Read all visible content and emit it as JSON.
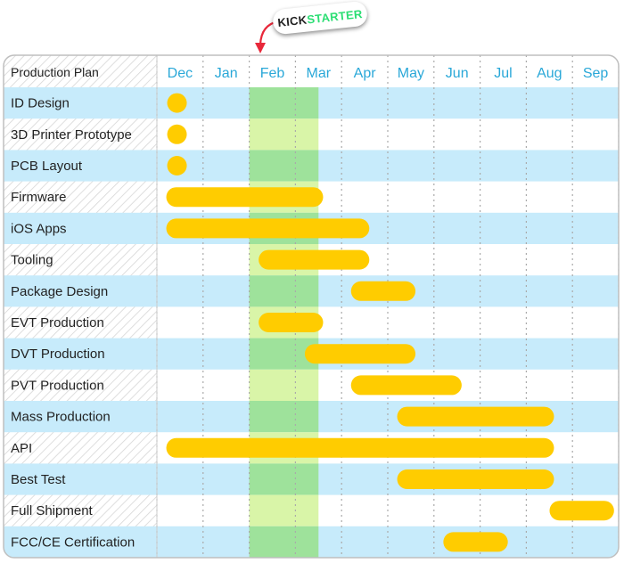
{
  "kickstarter": {
    "part1": "KICK",
    "part2": "STARTER"
  },
  "chart_data": {
    "type": "gantt",
    "title": "Production Plan",
    "months": [
      "Dec",
      "Jan",
      "Feb",
      "Mar",
      "Apr",
      "May",
      "Jun",
      "Jul",
      "Aug",
      "Sep"
    ],
    "highlight": {
      "start_month": 2,
      "end_month": 3.5,
      "label": "KICKSTARTER"
    },
    "tasks": [
      {
        "name": "ID Design",
        "start": 0.3,
        "end": 0.45
      },
      {
        "name": "3D Printer Prototype",
        "start": 0.3,
        "end": 0.45
      },
      {
        "name": "PCB Layout",
        "start": 0.3,
        "end": 0.45
      },
      {
        "name": "Firmware",
        "start": 0.3,
        "end": 3.6
      },
      {
        "name": "iOS Apps",
        "start": 0.3,
        "end": 4.6
      },
      {
        "name": "Tooling",
        "start": 2.3,
        "end": 4.6
      },
      {
        "name": "Package Design",
        "start": 4.3,
        "end": 5.6
      },
      {
        "name": "EVT Production",
        "start": 2.3,
        "end": 3.6
      },
      {
        "name": "DVT Production",
        "start": 3.3,
        "end": 5.6
      },
      {
        "name": "PVT Production",
        "start": 4.3,
        "end": 6.6
      },
      {
        "name": "Mass Production",
        "start": 5.3,
        "end": 8.6
      },
      {
        "name": "API",
        "start": 0.3,
        "end": 8.6
      },
      {
        "name": "Best Test",
        "start": 5.3,
        "end": 8.6
      },
      {
        "name": "Full Shipment",
        "start": 8.6,
        "end": 9.9
      },
      {
        "name": "FCC/CE Certification",
        "start": 6.3,
        "end": 7.6
      }
    ],
    "colors": {
      "bar": "#ffcc00",
      "row_blue": "#c7ebfb",
      "row_white": "#ffffff",
      "highlight_dark": "#9ee29b",
      "highlight_light": "#d9f5a8",
      "month_text": "#2aa8d8",
      "label_text": "#222222",
      "grid": "#aaaaaa",
      "border": "#bbbbbb",
      "hatch": "#cfcfcf",
      "arrow": "#e8283a"
    }
  }
}
